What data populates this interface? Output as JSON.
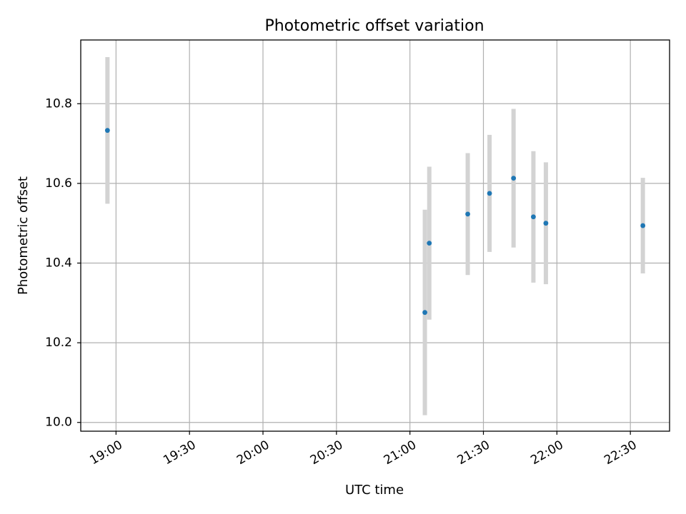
{
  "chart_data": {
    "type": "scatter",
    "title": "Photometric offset variation",
    "xlabel": "UTC time",
    "ylabel": "Photometric offset",
    "x_ticks": [
      "19:00",
      "19:30",
      "20:00",
      "20:30",
      "21:00",
      "21:30",
      "22:00",
      "22:30"
    ],
    "y_ticks": [
      "10.0",
      "10.2",
      "10.4",
      "10.6",
      "10.8"
    ],
    "xlim": [
      "18:45:36",
      "22:46:00"
    ],
    "ylim": [
      9.978,
      10.96
    ],
    "grid": true,
    "error_bar_color": "#d3d3d3",
    "point_color": "#1f77b4",
    "points": [
      {
        "t": "18:56:30",
        "y": 10.733,
        "err": 0.184
      },
      {
        "t": "21:06:06",
        "y": 10.276,
        "err": 0.258
      },
      {
        "t": "21:07:54",
        "y": 10.45,
        "err": 0.192
      },
      {
        "t": "21:23:36",
        "y": 10.523,
        "err": 0.153
      },
      {
        "t": "21:32:30",
        "y": 10.575,
        "err": 0.147
      },
      {
        "t": "21:42:18",
        "y": 10.613,
        "err": 0.174
      },
      {
        "t": "21:50:24",
        "y": 10.516,
        "err": 0.165
      },
      {
        "t": "21:55:30",
        "y": 10.5,
        "err": 0.153
      },
      {
        "t": "22:35:06",
        "y": 10.494,
        "err": 0.12
      }
    ]
  }
}
